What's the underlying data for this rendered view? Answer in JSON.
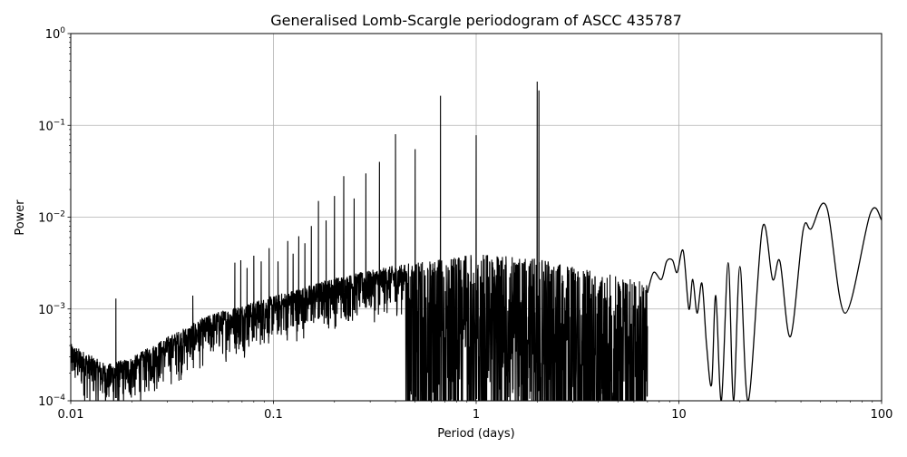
{
  "chart_data": {
    "type": "line",
    "title": "Generalised Lomb-Scargle periodogram of ASCC 435787",
    "xlabel": "Period (days)",
    "ylabel": "Power",
    "xscale": "log",
    "yscale": "log",
    "xlim": [
      0.01,
      100
    ],
    "ylim": [
      0.0001,
      1
    ],
    "grid": true,
    "legend": null,
    "x_ticks": [
      {
        "value": 0.01,
        "label": "0.01"
      },
      {
        "value": 0.1,
        "label": "0.1"
      },
      {
        "value": 1,
        "label": "1"
      },
      {
        "value": 10,
        "label": "10"
      },
      {
        "value": 100,
        "label": "100"
      }
    ],
    "y_ticks": [
      {
        "value": 0.0001,
        "base": "10",
        "exp": "−4"
      },
      {
        "value": 0.001,
        "base": "10",
        "exp": "−3"
      },
      {
        "value": 0.01,
        "base": "10",
        "exp": "−2"
      },
      {
        "value": 0.1,
        "base": "10",
        "exp": "−1"
      },
      {
        "value": 1,
        "base": "10",
        "exp": "0"
      }
    ],
    "line_color": "#000000",
    "grid_color": "#b0b0b0",
    "noise_floor_envelope": [
      {
        "period": 0.01,
        "power": 0.00042
      },
      {
        "period": 0.015,
        "power": 0.00025
      },
      {
        "period": 0.02,
        "power": 0.0003
      },
      {
        "period": 0.03,
        "power": 0.0005
      },
      {
        "period": 0.05,
        "power": 0.0009
      },
      {
        "period": 0.1,
        "power": 0.0014
      },
      {
        "period": 0.2,
        "power": 0.0022
      },
      {
        "period": 0.4,
        "power": 0.003
      },
      {
        "period": 0.7,
        "power": 0.0035
      },
      {
        "period": 1.0,
        "power": 0.004
      },
      {
        "period": 2.0,
        "power": 0.0035
      },
      {
        "period": 4.0,
        "power": 0.0025
      },
      {
        "period": 7.0,
        "power": 0.002
      }
    ],
    "alias_peaks": [
      {
        "period": 0.0167,
        "power": 0.0013
      },
      {
        "period": 0.04,
        "power": 0.0014
      },
      {
        "period": 0.0645,
        "power": 0.0032
      },
      {
        "period": 0.069,
        "power": 0.0034
      },
      {
        "period": 0.0741,
        "power": 0.0028
      },
      {
        "period": 0.08,
        "power": 0.0038
      },
      {
        "period": 0.087,
        "power": 0.0033
      },
      {
        "period": 0.0952,
        "power": 0.0046
      },
      {
        "period": 0.1053,
        "power": 0.0033
      },
      {
        "period": 0.1176,
        "power": 0.0055
      },
      {
        "period": 0.125,
        "power": 0.004
      },
      {
        "period": 0.1333,
        "power": 0.0062
      },
      {
        "period": 0.1429,
        "power": 0.0052
      },
      {
        "period": 0.1538,
        "power": 0.008
      },
      {
        "period": 0.1667,
        "power": 0.015
      },
      {
        "period": 0.1818,
        "power": 0.0092
      },
      {
        "period": 0.2,
        "power": 0.017
      },
      {
        "period": 0.2222,
        "power": 0.028
      },
      {
        "period": 0.25,
        "power": 0.016
      },
      {
        "period": 0.2857,
        "power": 0.03
      },
      {
        "period": 0.3333,
        "power": 0.04
      },
      {
        "period": 0.4,
        "power": 0.08
      },
      {
        "period": 0.5,
        "power": 0.055
      },
      {
        "period": 0.6667,
        "power": 0.21
      },
      {
        "period": 1.0,
        "power": 0.078
      },
      {
        "period": 2.0,
        "power": 0.3
      },
      {
        "period": 2.04,
        "power": 0.24
      }
    ],
    "long_period_curve": [
      {
        "period": 7.0,
        "power": 0.0015
      },
      {
        "period": 7.5,
        "power": 0.0025
      },
      {
        "period": 8.2,
        "power": 0.0021
      },
      {
        "period": 8.7,
        "power": 0.0033
      },
      {
        "period": 9.3,
        "power": 0.0034
      },
      {
        "period": 9.8,
        "power": 0.0025
      },
      {
        "period": 10.5,
        "power": 0.0043
      },
      {
        "period": 11.2,
        "power": 0.001
      },
      {
        "period": 11.7,
        "power": 0.0021
      },
      {
        "period": 12.3,
        "power": 0.0009
      },
      {
        "period": 13.0,
        "power": 0.0019
      },
      {
        "period": 13.7,
        "power": 0.0004
      },
      {
        "period": 14.5,
        "power": 0.00015
      },
      {
        "period": 15.2,
        "power": 0.0014
      },
      {
        "period": 16.2,
        "power": 0.0001
      },
      {
        "period": 17.5,
        "power": 0.0032
      },
      {
        "period": 18.6,
        "power": 0.0001
      },
      {
        "period": 20.0,
        "power": 0.0029
      },
      {
        "period": 22.0,
        "power": 0.0001
      },
      {
        "period": 25.8,
        "power": 0.0076
      },
      {
        "period": 29.0,
        "power": 0.0021
      },
      {
        "period": 31.5,
        "power": 0.0033
      },
      {
        "period": 35.5,
        "power": 0.0005
      },
      {
        "period": 41.0,
        "power": 0.0072
      },
      {
        "period": 45.0,
        "power": 0.0075
      },
      {
        "period": 53.5,
        "power": 0.013
      },
      {
        "period": 66.0,
        "power": 0.0009
      },
      {
        "period": 88.0,
        "power": 0.011
      },
      {
        "period": 100.0,
        "power": 0.0093
      }
    ]
  }
}
